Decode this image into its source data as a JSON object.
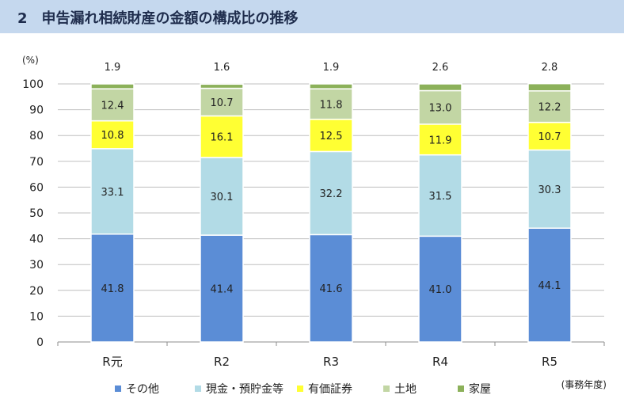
{
  "title": "2　申告漏れ相続財産の金額の構成比の推移",
  "fiscal_year_label": "(事務年度)",
  "chart_data": {
    "type": "bar",
    "stacked": true,
    "unit_label": "(%)",
    "categories": [
      "R元",
      "R2",
      "R3",
      "R4",
      "R5"
    ],
    "series": [
      {
        "name": "その他",
        "color": "#5b8dd6",
        "values": [
          41.8,
          41.4,
          41.6,
          41.0,
          44.1
        ]
      },
      {
        "name": "現金・預貯金等",
        "color": "#b2dbe6",
        "values": [
          33.1,
          30.1,
          32.2,
          31.5,
          30.3
        ]
      },
      {
        "name": "有価証券",
        "color": "#ffff33",
        "values": [
          10.8,
          16.1,
          12.5,
          11.9,
          10.7
        ]
      },
      {
        "name": "土地",
        "color": "#c2d6a4",
        "values": [
          12.4,
          10.7,
          11.8,
          13.0,
          12.2
        ]
      },
      {
        "name": "家屋",
        "color": "#8cb15a",
        "values": [
          1.9,
          1.6,
          1.9,
          2.6,
          2.8
        ]
      }
    ],
    "ylim": [
      0,
      100
    ],
    "yticks": [
      0,
      10,
      20,
      30,
      40,
      50,
      60,
      70,
      80,
      90,
      100
    ],
    "grid": true,
    "legend_position": "bottom"
  }
}
